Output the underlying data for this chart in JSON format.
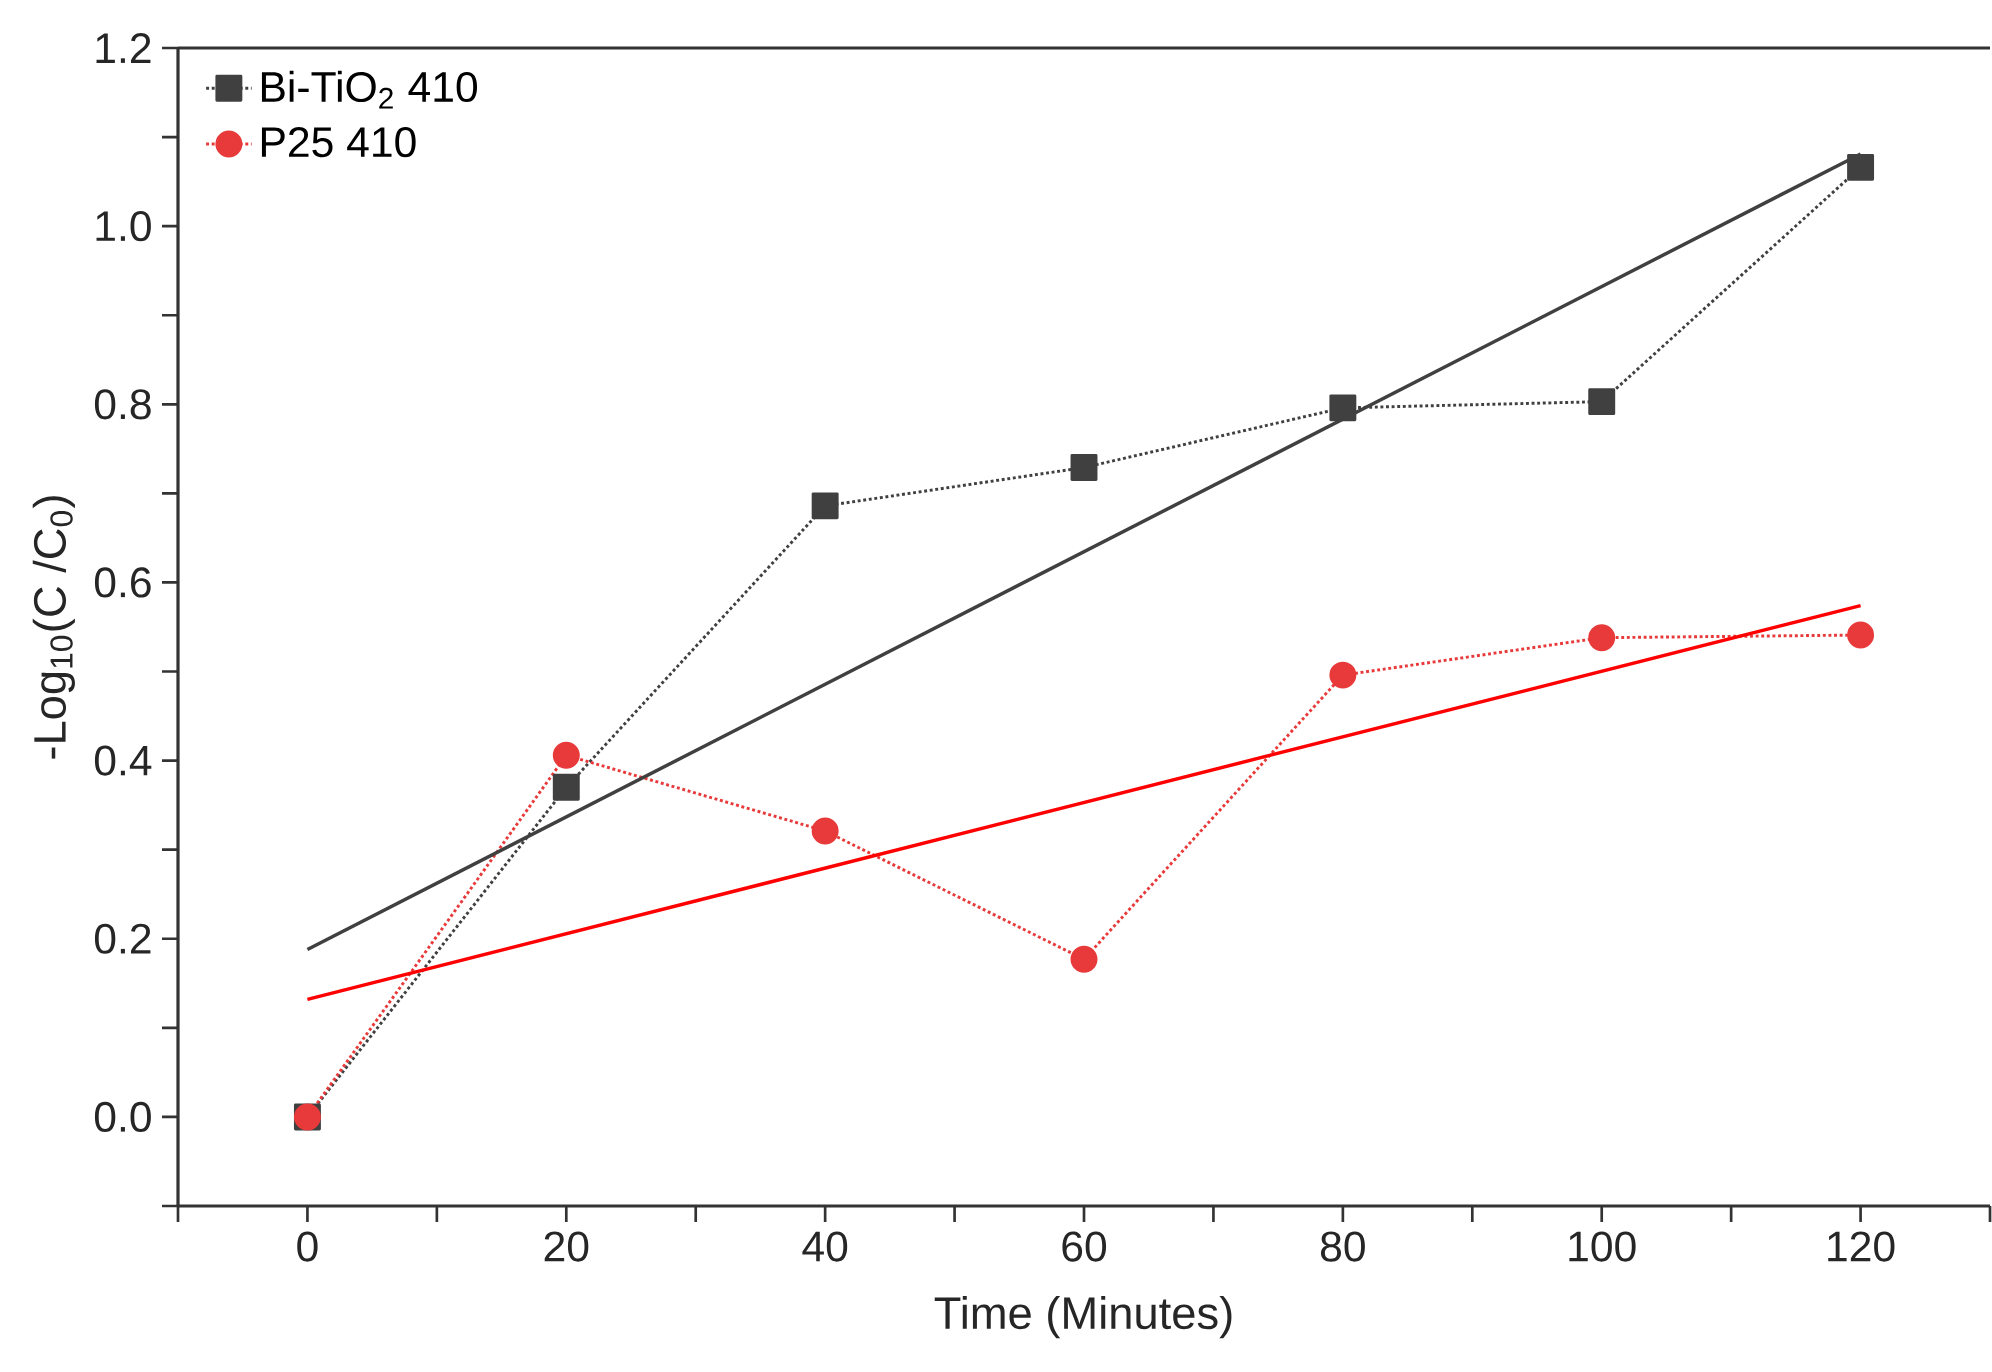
{
  "chart_data": {
    "type": "line",
    "xlabel": "Time (Minutes)",
    "ylabel": "-Log$_{10}$(C /C$_{0}$)",
    "xlim": [
      -10,
      130
    ],
    "ylim": [
      -0.1,
      1.2
    ],
    "xticks": [
      {
        "value": -10,
        "label": null
      },
      0,
      {
        "value": 10,
        "label": null
      },
      20,
      {
        "value": 30,
        "label": null
      },
      40,
      {
        "value": 50,
        "label": null
      },
      60,
      {
        "value": 70,
        "label": null
      },
      80,
      {
        "value": 90,
        "label": null
      },
      100,
      {
        "value": 110,
        "label": null
      },
      120,
      {
        "value": 130,
        "label": null
      }
    ],
    "yticks": [
      {
        "value": -0.1,
        "label": null
      },
      {
        "value": 0.0,
        "label": "0.0"
      },
      {
        "value": 0.1,
        "label": null
      },
      {
        "value": 0.2,
        "label": "0.2"
      },
      {
        "value": 0.3,
        "label": null
      },
      {
        "value": 0.4,
        "label": "0.4"
      },
      {
        "value": 0.5,
        "label": null
      },
      {
        "value": 0.6,
        "label": "0.6"
      },
      {
        "value": 0.7,
        "label": null
      },
      {
        "value": 0.8,
        "label": "0.8"
      },
      {
        "value": 0.9,
        "label": null
      },
      {
        "value": 1.0,
        "label": "1.0"
      },
      {
        "value": 1.1,
        "label": null
      },
      {
        "value": 1.2,
        "label": "1.2"
      }
    ],
    "legend": "top left",
    "series": [
      {
        "name": "Bi-TiO$_{2}$ 410",
        "color": "#404040",
        "marker": "square",
        "line_style": "dotted",
        "x": [
          0,
          20,
          40,
          60,
          80,
          100,
          120
        ],
        "values": [
          0.0,
          0.37,
          0.686,
          0.729,
          0.796,
          0.803,
          1.066
        ]
      },
      {
        "name": "P25 410",
        "color": "#e83a3a",
        "marker": "circle",
        "line_style": "dotted",
        "x": [
          0,
          20,
          40,
          60,
          80,
          100,
          120
        ],
        "values": [
          0.0,
          0.406,
          0.321,
          0.177,
          0.496,
          0.538,
          0.541
        ]
      },
      {
        "color": "#404040",
        "marker": "none",
        "line_style": "solid",
        "x": [
          0,
          120
        ],
        "values": [
          0.188,
          1.081
        ]
      },
      {
        "color": "#ff0000",
        "marker": "none",
        "line_style": "solid",
        "x": [
          0,
          120
        ],
        "values": [
          0.132,
          0.574
        ]
      }
    ]
  }
}
